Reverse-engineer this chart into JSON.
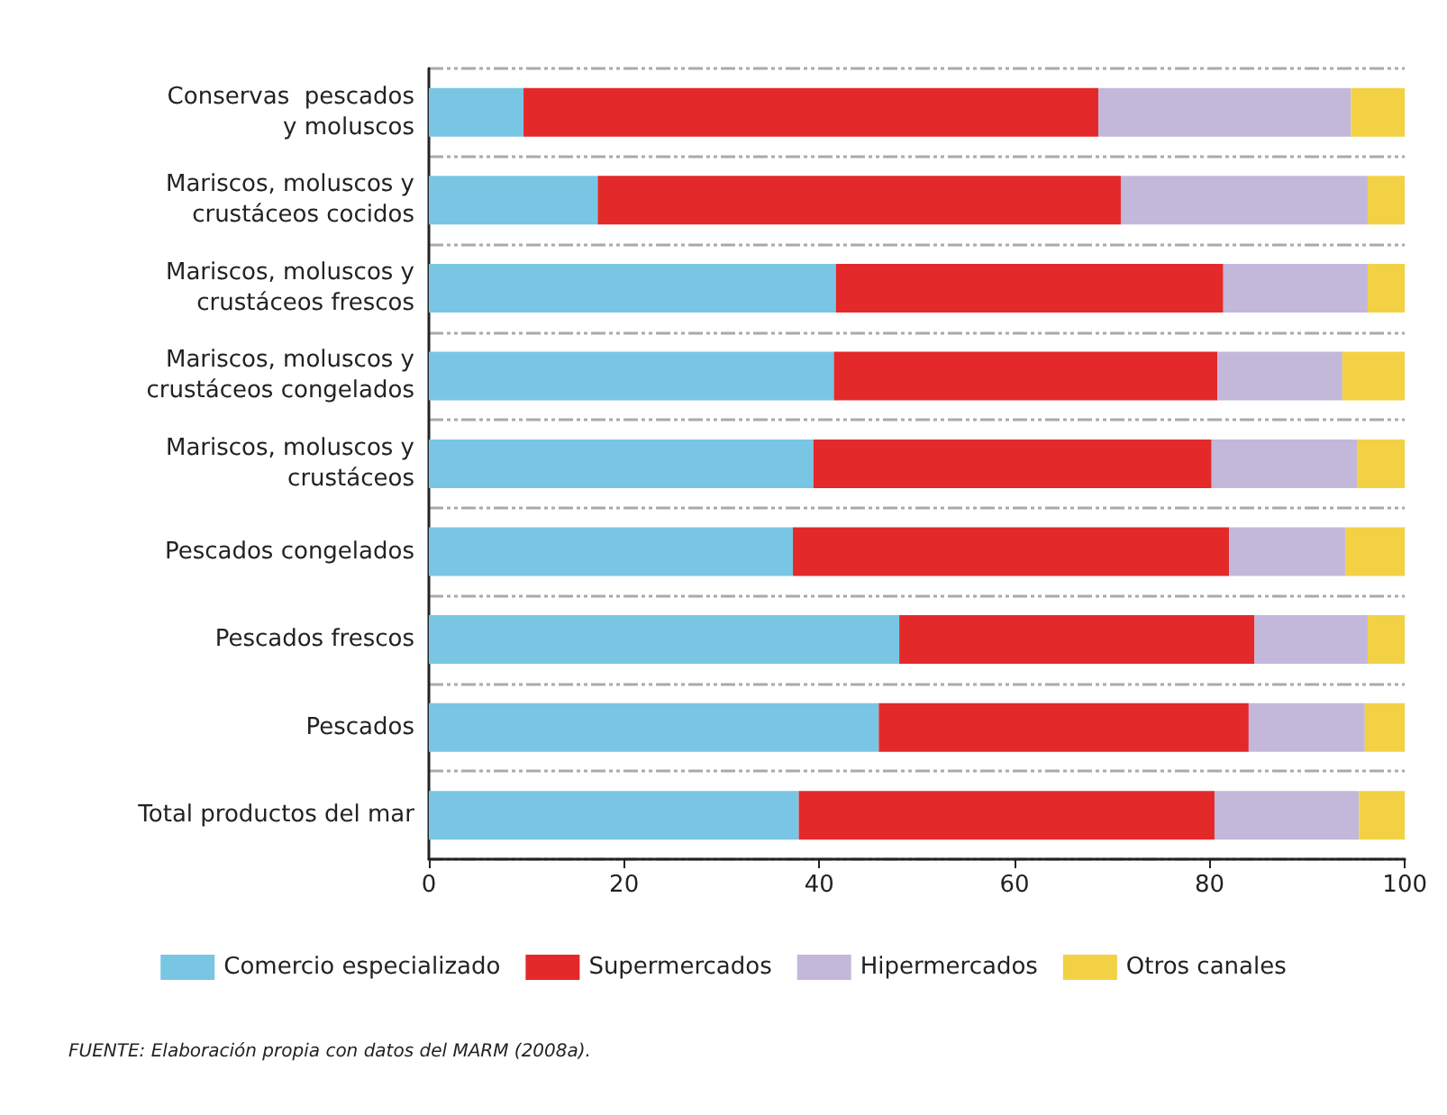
{
  "chart_data": {
    "type": "bar",
    "orientation": "horizontal",
    "stacked": true,
    "categories": [
      "Conservas  pescados\ny moluscos",
      "Mariscos, moluscos y\ncrustáceos cocidos",
      "Mariscos, moluscos y\ncrustáceos frescos",
      "Mariscos, moluscos y\ncrustáceos congelados",
      "Mariscos, moluscos y\ncrustáceos",
      "Pescados congelados",
      "Pescados frescos",
      "Pescados",
      "Total productos del mar"
    ],
    "series": [
      {
        "name": "Comercio especializado",
        "color": "#78c6e4",
        "values": [
          9.7,
          17.3,
          41.7,
          41.5,
          39.4,
          37.3,
          48.2,
          46.1,
          37.9
        ]
      },
      {
        "name": "Supermercados",
        "color": "#e3292a",
        "values": [
          58.9,
          53.6,
          39.7,
          39.3,
          40.8,
          44.7,
          36.4,
          37.9,
          42.6
        ]
      },
      {
        "name": "Hipermercados",
        "color": "#c3b8da",
        "values": [
          25.9,
          25.3,
          14.8,
          12.8,
          14.9,
          11.9,
          11.6,
          11.9,
          14.8
        ]
      },
      {
        "name": "Otros canales",
        "color": "#f3d144",
        "values": [
          5.5,
          3.8,
          3.8,
          6.4,
          4.9,
          6.1,
          3.8,
          4.1,
          4.7
        ]
      }
    ],
    "xlim": [
      0,
      100
    ],
    "xticks": [
      0,
      20,
      40,
      60,
      80,
      100
    ],
    "grid": "y",
    "legend": "bottom",
    "annotations": [
      "FUENTE: Elaboración propia con datos del MARM (2008a)."
    ]
  }
}
